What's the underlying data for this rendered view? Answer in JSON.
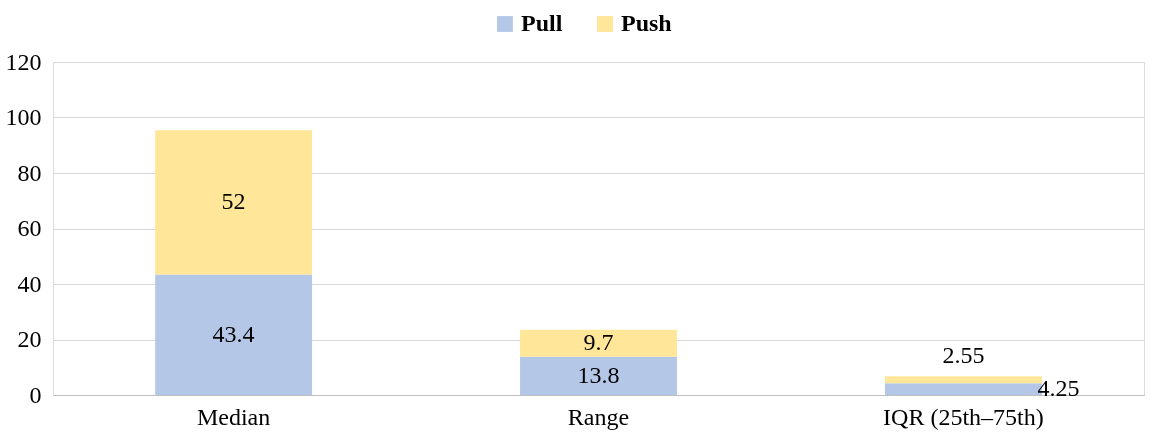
{
  "chart_data": {
    "type": "bar",
    "stacked": true,
    "categories": [
      "Median",
      "Range",
      "IQR (25th–75th)"
    ],
    "series": [
      {
        "name": "Pull",
        "color": "#b4c7e7",
        "values": [
          43.4,
          13.8,
          4.25
        ]
      },
      {
        "name": "Push",
        "color": "#ffe699",
        "values": [
          52,
          9.7,
          2.55
        ]
      }
    ],
    "ylim": [
      0,
      120
    ],
    "yticks": [
      0,
      20,
      40,
      60,
      80,
      100,
      120
    ],
    "grid": "y",
    "legend": "top",
    "data_labels": true
  }
}
